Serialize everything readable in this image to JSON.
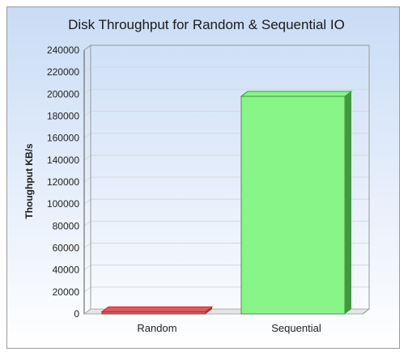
{
  "chart_data": {
    "type": "bar",
    "title": "Disk Throughput for Random & Sequential IO",
    "xlabel": "",
    "ylabel": "Thoughput KB/s",
    "categories": [
      "Random",
      "Sequential"
    ],
    "values": [
      2000,
      198000
    ],
    "ylim": [
      0,
      240000
    ],
    "yticks": [
      "0",
      "20000",
      "40000",
      "60000",
      "80000",
      "100000",
      "120000",
      "140000",
      "160000",
      "180000",
      "200000",
      "220000",
      "240000"
    ],
    "grid": true,
    "legend": "none",
    "bar_colors": [
      "#e05a5a",
      "#88f588"
    ],
    "bar_side_colors": [
      "#a83232",
      "#3f9a3f"
    ],
    "background_gradient": [
      "#c9dcf6",
      "#ffffff"
    ]
  }
}
